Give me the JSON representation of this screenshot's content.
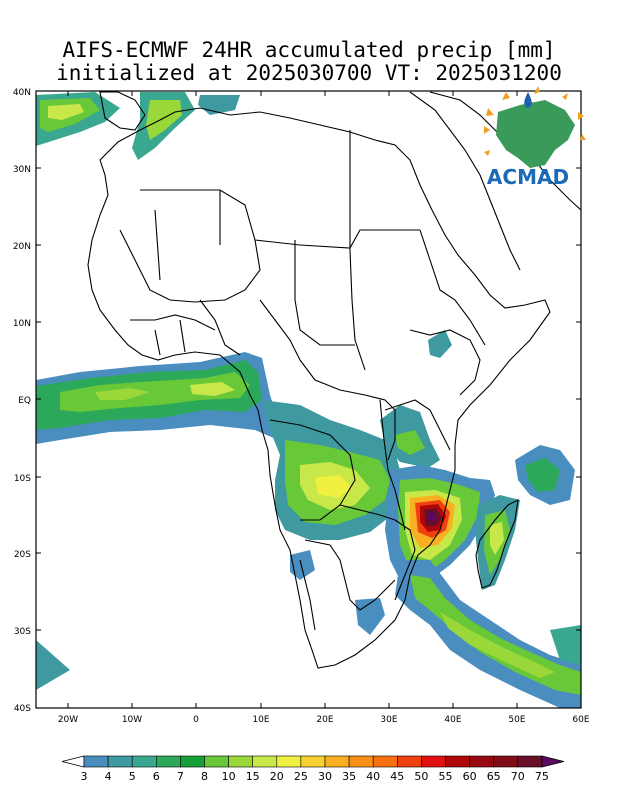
{
  "title": {
    "line1": "AIFS-ECMWF 24HR accumulated precip [mm]",
    "line2": "initialized at 2025030700 VT: 2025031200"
  },
  "logo": {
    "text": "ACMAD",
    "icon": "africa-map-logo-icon"
  },
  "axes": {
    "lat_labels": [
      "40N",
      "30N",
      "20N",
      "10N",
      "EQ",
      "10S",
      "20S",
      "30S",
      "40S"
    ],
    "lon_labels": [
      "20W",
      "10W",
      "0",
      "10E",
      "20E",
      "30E",
      "40E",
      "50E",
      "60E"
    ],
    "lat_range": [
      -40,
      40
    ],
    "lon_range": [
      -25,
      60
    ]
  },
  "colorbar": {
    "levels": [
      "3",
      "4",
      "5",
      "6",
      "7",
      "8",
      "10",
      "15",
      "20",
      "25",
      "30",
      "35",
      "40",
      "45",
      "50",
      "55",
      "60",
      "65",
      "70",
      "75"
    ],
    "colors": [
      "#ffffff",
      "#4a8ec0",
      "#3e9aa0",
      "#3aa890",
      "#2ca85a",
      "#18a038",
      "#68c838",
      "#9ad83a",
      "#c8e84a",
      "#f0f040",
      "#f8d030",
      "#f8b020",
      "#f89018",
      "#f87010",
      "#f04010",
      "#e01010",
      "#b00808",
      "#980810",
      "#800c18",
      "#681028",
      "#5a0a60"
    ]
  }
}
